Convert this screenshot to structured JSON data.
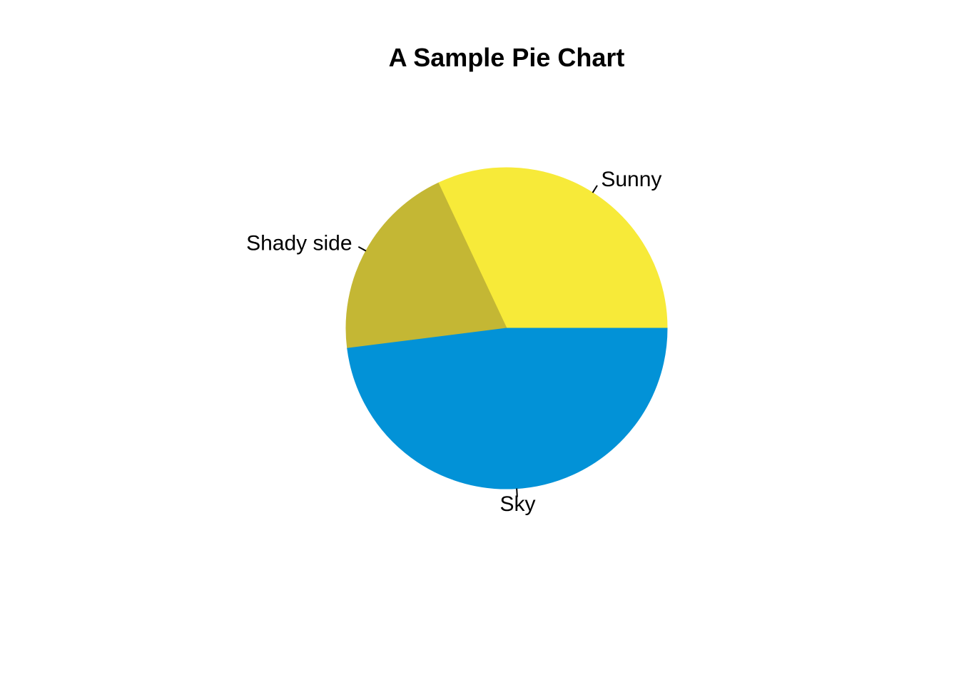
{
  "chart_data": {
    "type": "pie",
    "title": "A Sample Pie Chart",
    "start_angle_deg": 0,
    "direction": "counterclockwise",
    "legend": "none",
    "slices": [
      {
        "label": "Sunny",
        "value": 32,
        "color": "#F7EA39"
      },
      {
        "label": "Shady side",
        "value": 20,
        "color": "#C4B734"
      },
      {
        "label": "Sky",
        "value": 48,
        "color": "#0292D7"
      }
    ]
  }
}
